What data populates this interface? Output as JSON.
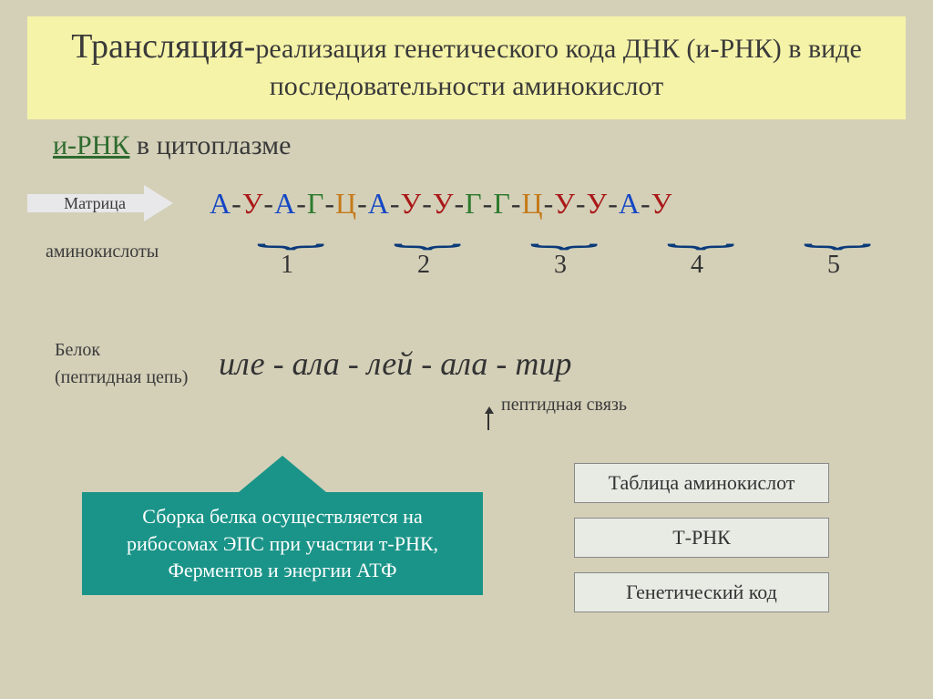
{
  "title": {
    "main": "Трансляция-",
    "sub": "реализация генетического кода ДНК (и-РНК) в виде последовательности аминокислот"
  },
  "rnk": {
    "label": "и-РНК",
    "location": " в цитоплазме"
  },
  "matrix_label": "Матрица",
  "amino_label": "аминокислоты",
  "sequence": {
    "letters": [
      "А",
      "У",
      "А",
      "Г",
      "Ц",
      "А",
      "У",
      "У",
      "Г",
      "Г",
      "Ц",
      "У",
      "У",
      "А",
      "У"
    ],
    "colors": [
      "#1547c4",
      "#aa1818",
      "#1547c4",
      "#2e7a2e",
      "#c47a1a",
      "#1547c4",
      "#aa1818",
      "#aa1818",
      "#2e7a2e",
      "#2e7a2e",
      "#c47a1a",
      "#aa1818",
      "#aa1818",
      "#1547c4",
      "#aa1818"
    ],
    "separator": "-",
    "separator_color": "#333333"
  },
  "codon_numbers": [
    "1",
    "2",
    "3",
    "4",
    "5"
  ],
  "protein": {
    "label1": "Белок",
    "label2": "(пептидная цепь)",
    "chain": "иле -  ала  -  лей - ала - тир",
    "peptide_link": "пептидная связь"
  },
  "green_box": "Сборка белка осуществляется на рибосомах ЭПС при участии т-РНК, Ферментов и энергии АТФ",
  "buttons": {
    "amino_table": "Таблица аминокислот",
    "trna": "Т-РНК",
    "gencode": "Генетический код"
  },
  "style": {
    "background": "#d4d0b8",
    "title_bg": "#f5f3a8",
    "green": "#1a9488",
    "btn_bg": "#e8ebe4",
    "bracket_color": "#0a3a7a"
  }
}
